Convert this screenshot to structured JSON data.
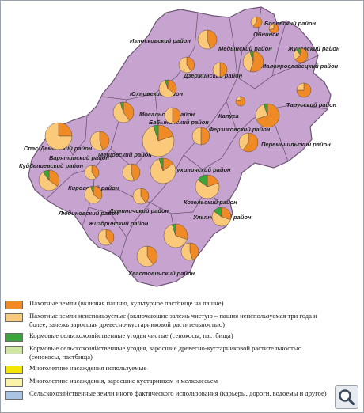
{
  "districts": [
    {
      "name": "Боровский район"
    },
    {
      "name": "Обнинск"
    },
    {
      "name": "Износковский район"
    },
    {
      "name": "Жуковский район"
    },
    {
      "name": "Медынский район"
    },
    {
      "name": "Малоярославецкий район"
    },
    {
      "name": "Дзержинский район"
    },
    {
      "name": "Юхновский район"
    },
    {
      "name": "Тарусский район"
    },
    {
      "name": "Мосальский район"
    },
    {
      "name": "Бабынинский район"
    },
    {
      "name": "Калуга"
    },
    {
      "name": "Ферзиковский район"
    },
    {
      "name": "Спас-Деменский район"
    },
    {
      "name": "Перемышльский район"
    },
    {
      "name": "Куйбышевский район"
    },
    {
      "name": "Барятинский район"
    },
    {
      "name": "Мещовский район"
    },
    {
      "name": "Сухиничский район"
    },
    {
      "name": "Кировский район"
    },
    {
      "name": "Козельский район"
    },
    {
      "name": "Людиновский район"
    },
    {
      "name": "Думиничский район"
    },
    {
      "name": "Ульяновский район"
    },
    {
      "name": "Жиздринский район"
    },
    {
      "name": "Хвастовичский район"
    }
  ],
  "legend": [
    {
      "text": "Пахотные земли (включая пашню, культурное пастбище на пашне)",
      "color": "#f08a24"
    },
    {
      "text": "Пахотные земли неиспользуемые (включающие залежь чистую – пашня неиспользуемая три года и более, залежь заросшая древесно-кустарниковой растительностью)",
      "color": "#fbc97a"
    },
    {
      "text": "Кормовые сельскохозяйственные угодья чистые (сенокосы, пастбища)",
      "color": "#3aa63a"
    },
    {
      "text": "Кормовые сельскохозяйственные угодья, заросшие древесно-кустарниковой растительностью (сенокосы, пастбища)",
      "color": "#cfe6a4"
    },
    {
      "text": "Многолетние насаждения используемые",
      "color": "#f4e600"
    },
    {
      "text": "Многолетние насаждения, заросшие кустарником и мелколесьем",
      "color": "#fbf3a8"
    },
    {
      "text": "Сельскохозяйственные земли иного фактического использования (карьеры, дороги, водоемы и другое)",
      "color": "#a9c4e4"
    }
  ],
  "icons": {
    "zoom": "magnifier-icon"
  },
  "colors": {
    "region": "#c7a4cf",
    "border": "#6e5576"
  }
}
